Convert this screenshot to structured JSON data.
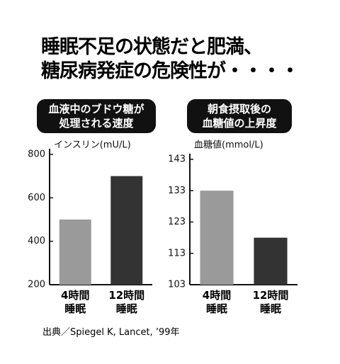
{
  "title": "睡眠不足の状態だと肥満、\n糖尿病発症の危険性が・・・・",
  "source": "出典／Spiegel K, Lancet, ’99年",
  "chart_data": [
    {
      "type": "bar",
      "title": "血液中のブドウ糖が\n処理される速度",
      "y_label": "インスリン(mU/L)",
      "categories": [
        "4時間\n睡眠",
        "12時間\n睡眠"
      ],
      "values": [
        500,
        700
      ],
      "colors": [
        "#9a9a9a",
        "#333333"
      ],
      "ylim": [
        200,
        800
      ],
      "yticks": [
        200,
        400,
        600,
        800
      ]
    },
    {
      "type": "bar",
      "title": "朝食摂取後の\n血糖値の上昇度",
      "y_label": "血糖値(mmol/L)",
      "categories": [
        "4時間\n睡眠",
        "12時間\n睡眠"
      ],
      "values": [
        133,
        118
      ],
      "colors": [
        "#9a9a9a",
        "#333333"
      ],
      "ylim": [
        103,
        143
      ],
      "yticks": [
        103,
        113,
        123,
        133,
        143
      ]
    }
  ]
}
